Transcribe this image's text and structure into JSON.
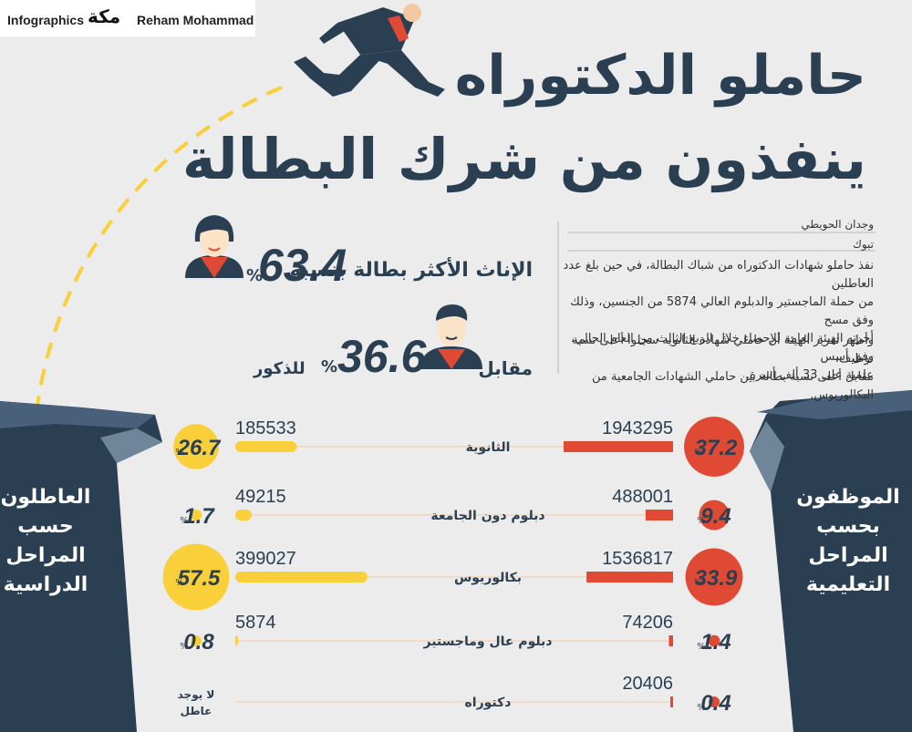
{
  "header": {
    "left_credit": "Infographics",
    "logo_text": "مكة",
    "right_credit": "Reham Mohammad",
    "title_line1": "حاملو الدكتوراه",
    "title_line2": "ينفذون من شرك البطالة"
  },
  "article": {
    "author": "وجدان الحويطي",
    "location": "تبوك",
    "paragraph1_lines": [
      "نفذ حاملو شهادات الدكتوراه من شباك البطالة، في حين بلغ عدد العاطلين",
      "من حملة الماجستير والدبلوم العالي 5874 من الجنسين، وذلك وفق مسح",
      "أجرته الهيئة العامة للإحصاء خلال الربع الثالث من العام الحالي، وفق أسس",
      "علمية على 33 ألف أسرة."
    ],
    "paragraph2_lines": [
      "وأظهر تقرير الهيئة أن حاملي شهادة الثانوية سجلوا أعلى نسبة توظيف،",
      "مقابل أعلى نسبة بطالة بين حاملي الشهادات الجامعية من البكالوريوس."
    ]
  },
  "gender_stats": {
    "female_label": "الإناث الأكثر بطالة بنسبة",
    "female_value": "63.4",
    "female_pct": "%",
    "male_prefix": "مقابل",
    "male_value": "36.6",
    "male_pct": "%",
    "male_suffix": "للذكور"
  },
  "side_labels": {
    "unemployed": [
      "العاطلون",
      "حسب",
      "المراحل",
      "الدراسية"
    ],
    "employed": [
      "الموظفون",
      "بحسب",
      "المراحل",
      "التعليمية"
    ]
  },
  "colors": {
    "navy": "#2b3f52",
    "employed_red": "#e04a35",
    "unemployed_yellow": "#f9cf3a",
    "background": "#ececec"
  },
  "chart_data": {
    "type": "bar",
    "categories": [
      "الثانوية",
      "دبلوم دون الجامعة",
      "بكالوريوس",
      "دبلوم عال وماجستير",
      "دكتوراه"
    ],
    "series": [
      {
        "name": "الموظفون بحسب المراحل التعليمية",
        "values": [
          1943295,
          488001,
          1536817,
          74206,
          20406
        ],
        "value_labels": [
          "1943295",
          "488001",
          "1536817",
          "74206",
          "20406"
        ],
        "percent_values": [
          37.2,
          9.4,
          33.9,
          1.4,
          0.4
        ],
        "percent_labels": [
          "37.2",
          "9.4",
          "33.9",
          "1.4",
          "0.4"
        ]
      },
      {
        "name": "العاطلون حسب المراحل الدراسية",
        "values": [
          185533,
          49215,
          399027,
          5874,
          0
        ],
        "value_labels": [
          "185533",
          "49215",
          "399027",
          "5874",
          ""
        ],
        "percent_values": [
          26.7,
          1.7,
          57.5,
          0.8,
          0
        ],
        "percent_labels": [
          "26.7",
          "1.7",
          "57.5",
          "0.8",
          ""
        ]
      }
    ],
    "pct_symbol": "%",
    "no_unemployed_lines": [
      "لا يوجد",
      "عاطل"
    ]
  }
}
